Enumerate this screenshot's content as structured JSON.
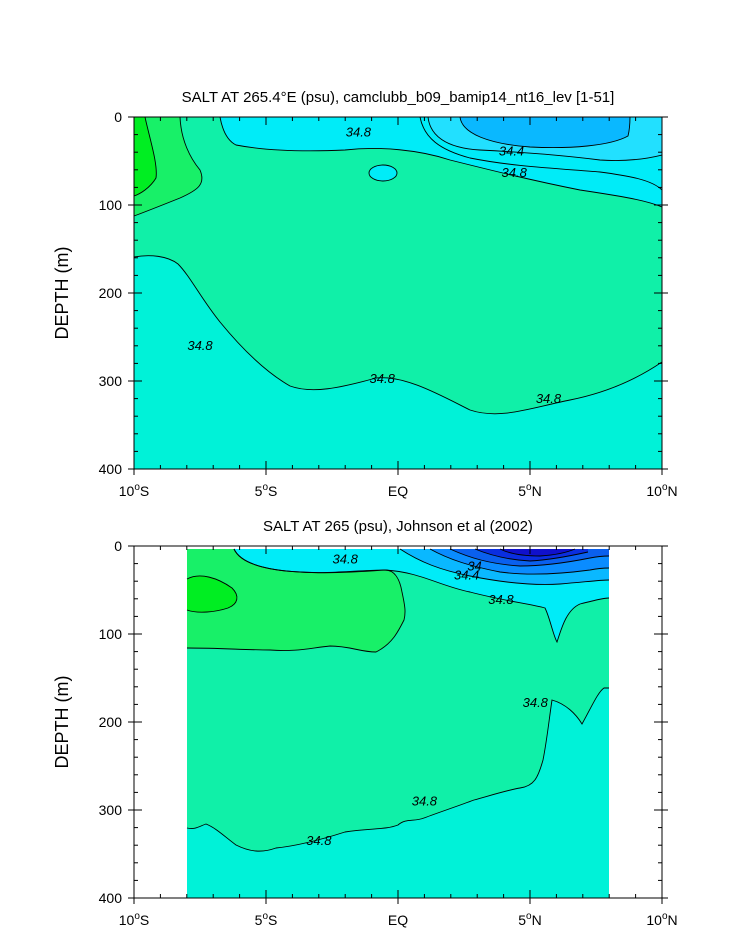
{
  "chart_data": [
    {
      "type": "contour",
      "title": "SALT AT 265.4°E (psu), camclubb_b09_bamip14_nt16_lev [1-51]",
      "ylabel": "DEPTH (m)",
      "xlim": [
        -10,
        10
      ],
      "ylim": [
        0,
        400
      ],
      "x_ticks": [
        {
          "value": -10,
          "deg": "10",
          "hemi": "S"
        },
        {
          "value": -5,
          "deg": "5",
          "hemi": "S"
        },
        {
          "value": 0,
          "deg": "",
          "hemi": "EQ"
        },
        {
          "value": 5,
          "deg": "5",
          "hemi": "N"
        },
        {
          "value": 10,
          "deg": "10",
          "hemi": "N"
        }
      ],
      "y_ticks": [
        0,
        100,
        200,
        300,
        400
      ],
      "contour_labels": [
        {
          "text": "34.8",
          "x": -1.5,
          "y": 22
        },
        {
          "text": "34.4",
          "x": 4.3,
          "y": 44
        },
        {
          "text": "34.8",
          "x": 4.4,
          "y": 68
        },
        {
          "text": "34.8",
          "x": -7.5,
          "y": 265
        },
        {
          "text": "34.8",
          "x": -0.6,
          "y": 302
        },
        {
          "text": "34.8",
          "x": 5.7,
          "y": 325
        }
      ]
    },
    {
      "type": "contour",
      "title": "SALT AT 265 (psu), Johnson et al (2002)",
      "ylabel": "DEPTH (m)",
      "xlim": [
        -10,
        10
      ],
      "ylim": [
        0,
        400
      ],
      "x_ticks": [
        {
          "value": -10,
          "deg": "10",
          "hemi": "S"
        },
        {
          "value": -5,
          "deg": "5",
          "hemi": "S"
        },
        {
          "value": 0,
          "deg": "",
          "hemi": "EQ"
        },
        {
          "value": 5,
          "deg": "5",
          "hemi": "N"
        },
        {
          "value": 10,
          "deg": "10",
          "hemi": "N"
        }
      ],
      "y_ticks": [
        0,
        100,
        200,
        300,
        400
      ],
      "contour_labels": [
        {
          "text": "34.8",
          "x": -2.0,
          "y": 20
        },
        {
          "text": "34",
          "x": 2.9,
          "y": 28
        },
        {
          "text": "34.4",
          "x": 2.6,
          "y": 38
        },
        {
          "text": "34.8",
          "x": 3.9,
          "y": 66
        },
        {
          "text": "34.8",
          "x": 1.0,
          "y": 295
        },
        {
          "text": "34.8",
          "x": -3.0,
          "y": 340
        },
        {
          "text": "34.8",
          "x": 5.2,
          "y": 183
        }
      ]
    }
  ],
  "colors": {
    "high_green": "#00ee22",
    "mid_green": "#18f068",
    "base_teal": "#10f0a8",
    "deep_cyan": "#00f2d8",
    "surface_cyan": "#00ecf8",
    "light_blue": "#22e0ff",
    "blue1": "#0ab8ff",
    "blue2": "#0a8cff",
    "blue3": "#0a60ee",
    "blue4": "#0a2ee0",
    "blue5": "#1010cc"
  }
}
